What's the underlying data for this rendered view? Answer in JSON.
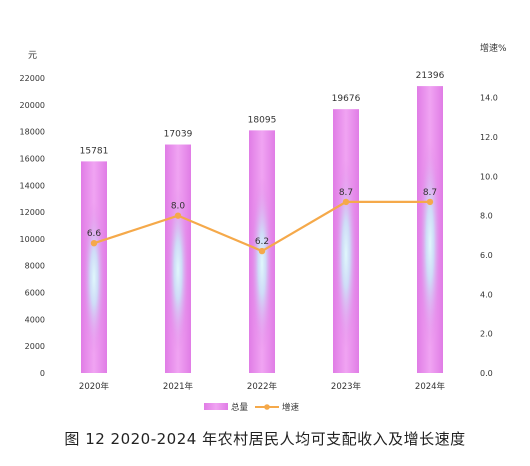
{
  "caption": "图 12   2020-2024 年农村居民人均可支配收入及增长速度",
  "chart_data": {
    "type": "bar",
    "categories": [
      "2020年",
      "2021年",
      "2022年",
      "2023年",
      "2024年"
    ],
    "series": [
      {
        "name": "总量",
        "type": "bar",
        "axis": "left",
        "values": [
          15781,
          17039,
          18095,
          19676,
          21396
        ],
        "data_labels": [
          "15781",
          "17039",
          "18095",
          "19676",
          "21396"
        ]
      },
      {
        "name": "增速",
        "type": "line",
        "axis": "right",
        "values": [
          6.6,
          8.0,
          6.2,
          8.7,
          8.7
        ],
        "data_labels": [
          "6.6",
          "8.0",
          "6.2",
          "8.7",
          "8.7"
        ]
      }
    ],
    "y_left": {
      "label": "元",
      "range": [
        0,
        22000
      ],
      "ticks": [
        "0",
        "2000",
        "4000",
        "6000",
        "8000",
        "10000",
        "12000",
        "14000",
        "16000",
        "18000",
        "20000",
        "22000"
      ]
    },
    "y_right": {
      "label": "增速%",
      "range": [
        0,
        15
      ],
      "ticks": [
        "0.0",
        "2.0",
        "4.0",
        "6.0",
        "8.0",
        "10.0",
        "12.0",
        "14.0"
      ]
    },
    "legend": {
      "position": "bottom"
    },
    "grid": false,
    "colors": {
      "bar_edge": "#e07ce6",
      "bar_mid": "#d6f3fb",
      "line": "#f5a94a",
      "text": "#333333"
    }
  }
}
